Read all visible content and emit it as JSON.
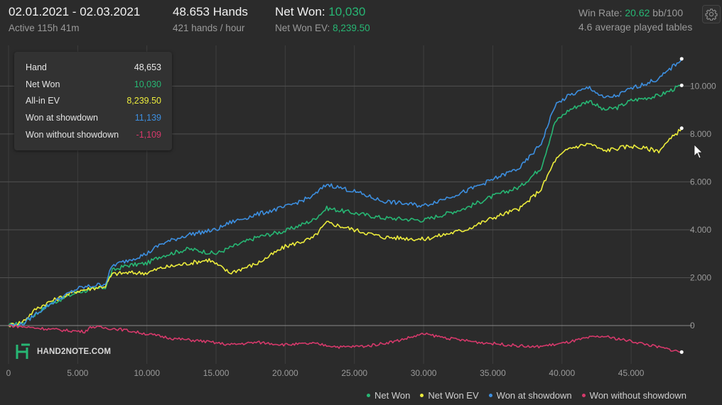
{
  "header": {
    "date_range": "02.01.2021 - 02.03.2021",
    "active": "Active 115h 41m",
    "hands": "48.653 Hands",
    "hands_per_hour": "421 hands / hour",
    "net_won_label": "Net Won:",
    "net_won_value": "10,030",
    "net_won_ev_label": "Net Won  EV:",
    "net_won_ev_value": "8,239.50",
    "win_rate_label": "Win Rate:",
    "win_rate_value": "20.62",
    "win_rate_unit": "bb/100",
    "avg_tables": "4.6 average played tables",
    "settings_icon": "gear-icon"
  },
  "tooltip": {
    "rows": [
      {
        "label": "Hand",
        "value": "48,653",
        "color": "#e8e8e8"
      },
      {
        "label": "Net Won",
        "value": "10,030",
        "color": "#27b774"
      },
      {
        "label": "All-in EV",
        "value": "8,239.50",
        "color": "#ecec3c"
      },
      {
        "label": "Won at showdown",
        "value": "11,139",
        "color": "#3d8fe0"
      },
      {
        "label": "Won without showdown",
        "value": "-1,109",
        "color": "#d6396b"
      }
    ]
  },
  "logo": {
    "text": "HAND2NOTE.COM"
  },
  "colors": {
    "background": "#2b2b2b",
    "net_won": "#27b774",
    "net_won_ev": "#ecec3c",
    "won_at_showdown": "#3d8fe0",
    "won_without_showdown": "#d6396b",
    "grid": "#3e3e3e",
    "zero_line": "#8a8a8a"
  },
  "chart_data": {
    "type": "line",
    "xlim": [
      0,
      49000
    ],
    "ylim": [
      -1600,
      11700
    ],
    "x_ticks": [
      0,
      5000,
      10000,
      15000,
      20000,
      25000,
      30000,
      35000,
      40000,
      45000
    ],
    "x_tick_labels": [
      "0",
      "5.000",
      "10.000",
      "15.000",
      "20.000",
      "25.000",
      "30.000",
      "35.000",
      "40.000",
      "45.000"
    ],
    "y_ticks": [
      0,
      2000,
      4000,
      6000,
      8000,
      10000
    ],
    "y_tick_labels": [
      "0",
      "2.000",
      "4.000",
      "6.000",
      "8.000",
      "10.000"
    ],
    "legend_position": "bottom-right",
    "series": [
      {
        "name": "Net Won",
        "color": "#27b774",
        "x": [
          0,
          1000,
          2000,
          3000,
          5000,
          7000,
          7500,
          8500,
          10000,
          11000,
          13000,
          15000,
          16000,
          18000,
          20000,
          22000,
          23000,
          25000,
          27000,
          30000,
          33000,
          35000,
          37000,
          38500,
          39500,
          40500,
          42000,
          43000,
          44000,
          45000,
          47000,
          48653
        ],
        "y": [
          0,
          100,
          500,
          900,
          1400,
          1600,
          2300,
          2500,
          2600,
          2900,
          3200,
          3000,
          3250,
          3700,
          3950,
          4400,
          4900,
          4700,
          4500,
          4400,
          4900,
          5400,
          5800,
          6600,
          8500,
          9000,
          9400,
          9000,
          9100,
          9400,
          9600,
          10030
        ]
      },
      {
        "name": "Net Won  EV",
        "color": "#ecec3c",
        "x": [
          0,
          1000,
          2000,
          3000,
          5000,
          7000,
          7500,
          8500,
          10000,
          11000,
          13000,
          14500,
          16000,
          18000,
          20000,
          22000,
          23000,
          25000,
          27000,
          30000,
          33000,
          35000,
          37000,
          38500,
          39500,
          40500,
          42000,
          43000,
          44000,
          45000,
          47000,
          48653
        ],
        "y": [
          0,
          150,
          700,
          1000,
          1450,
          1650,
          2150,
          2200,
          2200,
          2400,
          2600,
          2750,
          2200,
          2600,
          3300,
          3650,
          4300,
          4000,
          3700,
          3600,
          4000,
          4500,
          4900,
          5700,
          6900,
          7400,
          7600,
          7300,
          7400,
          7500,
          7300,
          8240
        ]
      },
      {
        "name": "Won at showdown",
        "color": "#3d8fe0",
        "x": [
          0,
          1000,
          2000,
          3000,
          5000,
          7000,
          7500,
          8500,
          10000,
          11000,
          13000,
          15000,
          16000,
          18000,
          20000,
          22000,
          23000,
          25000,
          27000,
          30000,
          33000,
          35000,
          37000,
          38500,
          39500,
          40500,
          42000,
          43000,
          44000,
          45000,
          47000,
          48653
        ],
        "y": [
          0,
          50,
          500,
          900,
          1550,
          1750,
          2500,
          2700,
          3000,
          3400,
          3800,
          4000,
          4300,
          4650,
          4950,
          5400,
          5900,
          5600,
          5200,
          5000,
          5600,
          6100,
          6600,
          7600,
          9200,
          9600,
          9950,
          9500,
          9600,
          9900,
          10300,
          11139
        ]
      },
      {
        "name": "Won without showdown",
        "color": "#d6396b",
        "x": [
          0,
          1000,
          2000,
          4000,
          5500,
          6000,
          8000,
          10000,
          12000,
          14000,
          16000,
          18000,
          20000,
          22000,
          24000,
          26000,
          28000,
          30000,
          32000,
          34000,
          36000,
          38000,
          40000,
          42000,
          43000,
          45000,
          47000,
          48653
        ],
        "y": [
          0,
          -50,
          -100,
          -200,
          -250,
          -50,
          -150,
          -350,
          -550,
          -650,
          -800,
          -700,
          -800,
          -750,
          -900,
          -850,
          -650,
          -350,
          -550,
          -700,
          -800,
          -900,
          -750,
          -500,
          -450,
          -650,
          -900,
          -1109
        ]
      }
    ]
  }
}
